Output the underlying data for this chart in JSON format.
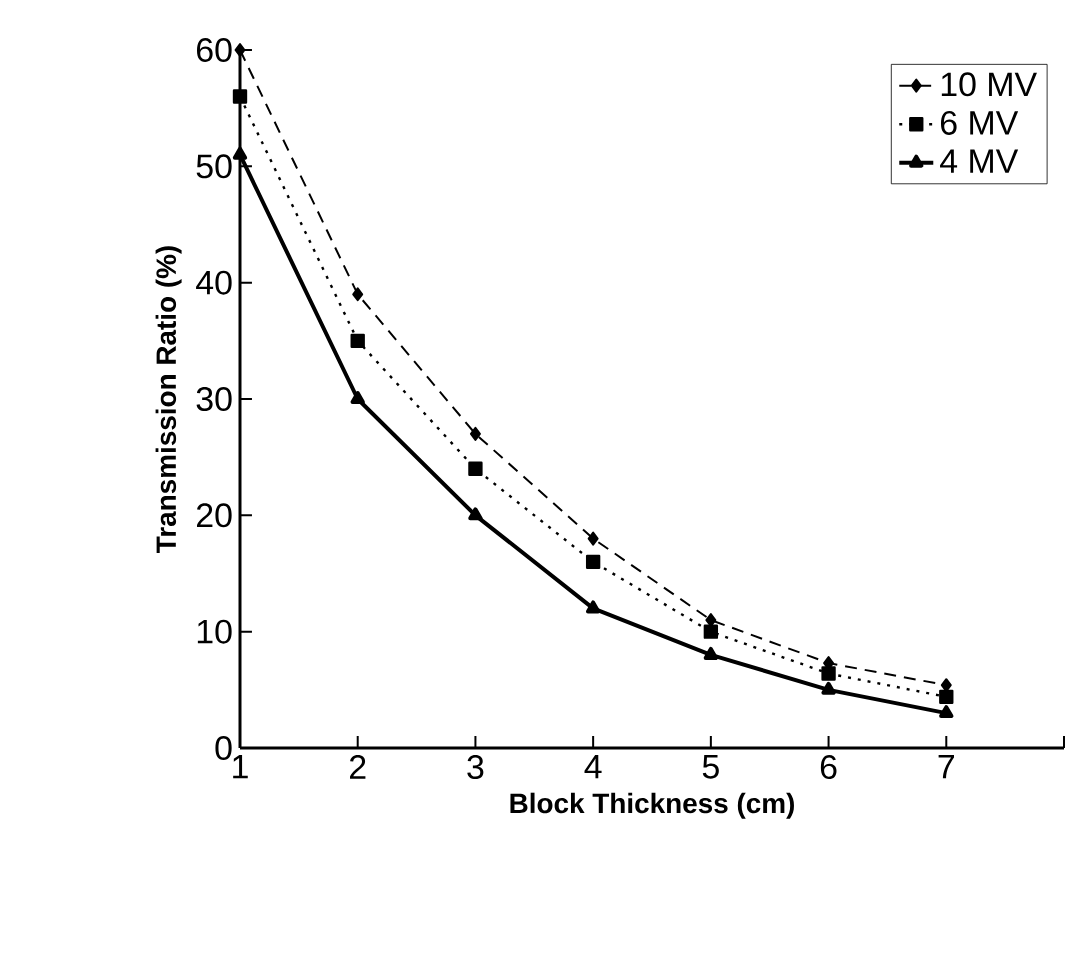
{
  "chart_data": {
    "type": "line",
    "xlabel": "Block Thickness (cm)",
    "ylabel": "Transmission Ratio (%)",
    "x": [
      1,
      2,
      3,
      4,
      5,
      6,
      7
    ],
    "xlim": [
      1,
      8
    ],
    "xticks": [
      1,
      2,
      3,
      4,
      5,
      6,
      7,
      {
        "value": 8,
        "label": null
      }
    ],
    "ylim": [
      0,
      60
    ],
    "yticks": [
      0,
      10,
      20,
      30,
      40,
      50,
      60
    ],
    "legend": "top right",
    "grid": false,
    "series": [
      {
        "name": "10 MV",
        "color": "#000000",
        "marker": "diamond",
        "line_style": "dashed",
        "values": [
          60,
          39,
          27,
          18,
          11,
          7.3,
          5.4
        ]
      },
      {
        "name": "6 MV",
        "color": "#000000",
        "marker": "square",
        "line_style": "dotted",
        "values": [
          56,
          35,
          24,
          16,
          10,
          6.4,
          4.4
        ]
      },
      {
        "name": "4 MV",
        "color": "#000000",
        "marker": "triangle",
        "line_style": "solid",
        "values": [
          51,
          30,
          20,
          12,
          8,
          5,
          3
        ]
      }
    ]
  }
}
